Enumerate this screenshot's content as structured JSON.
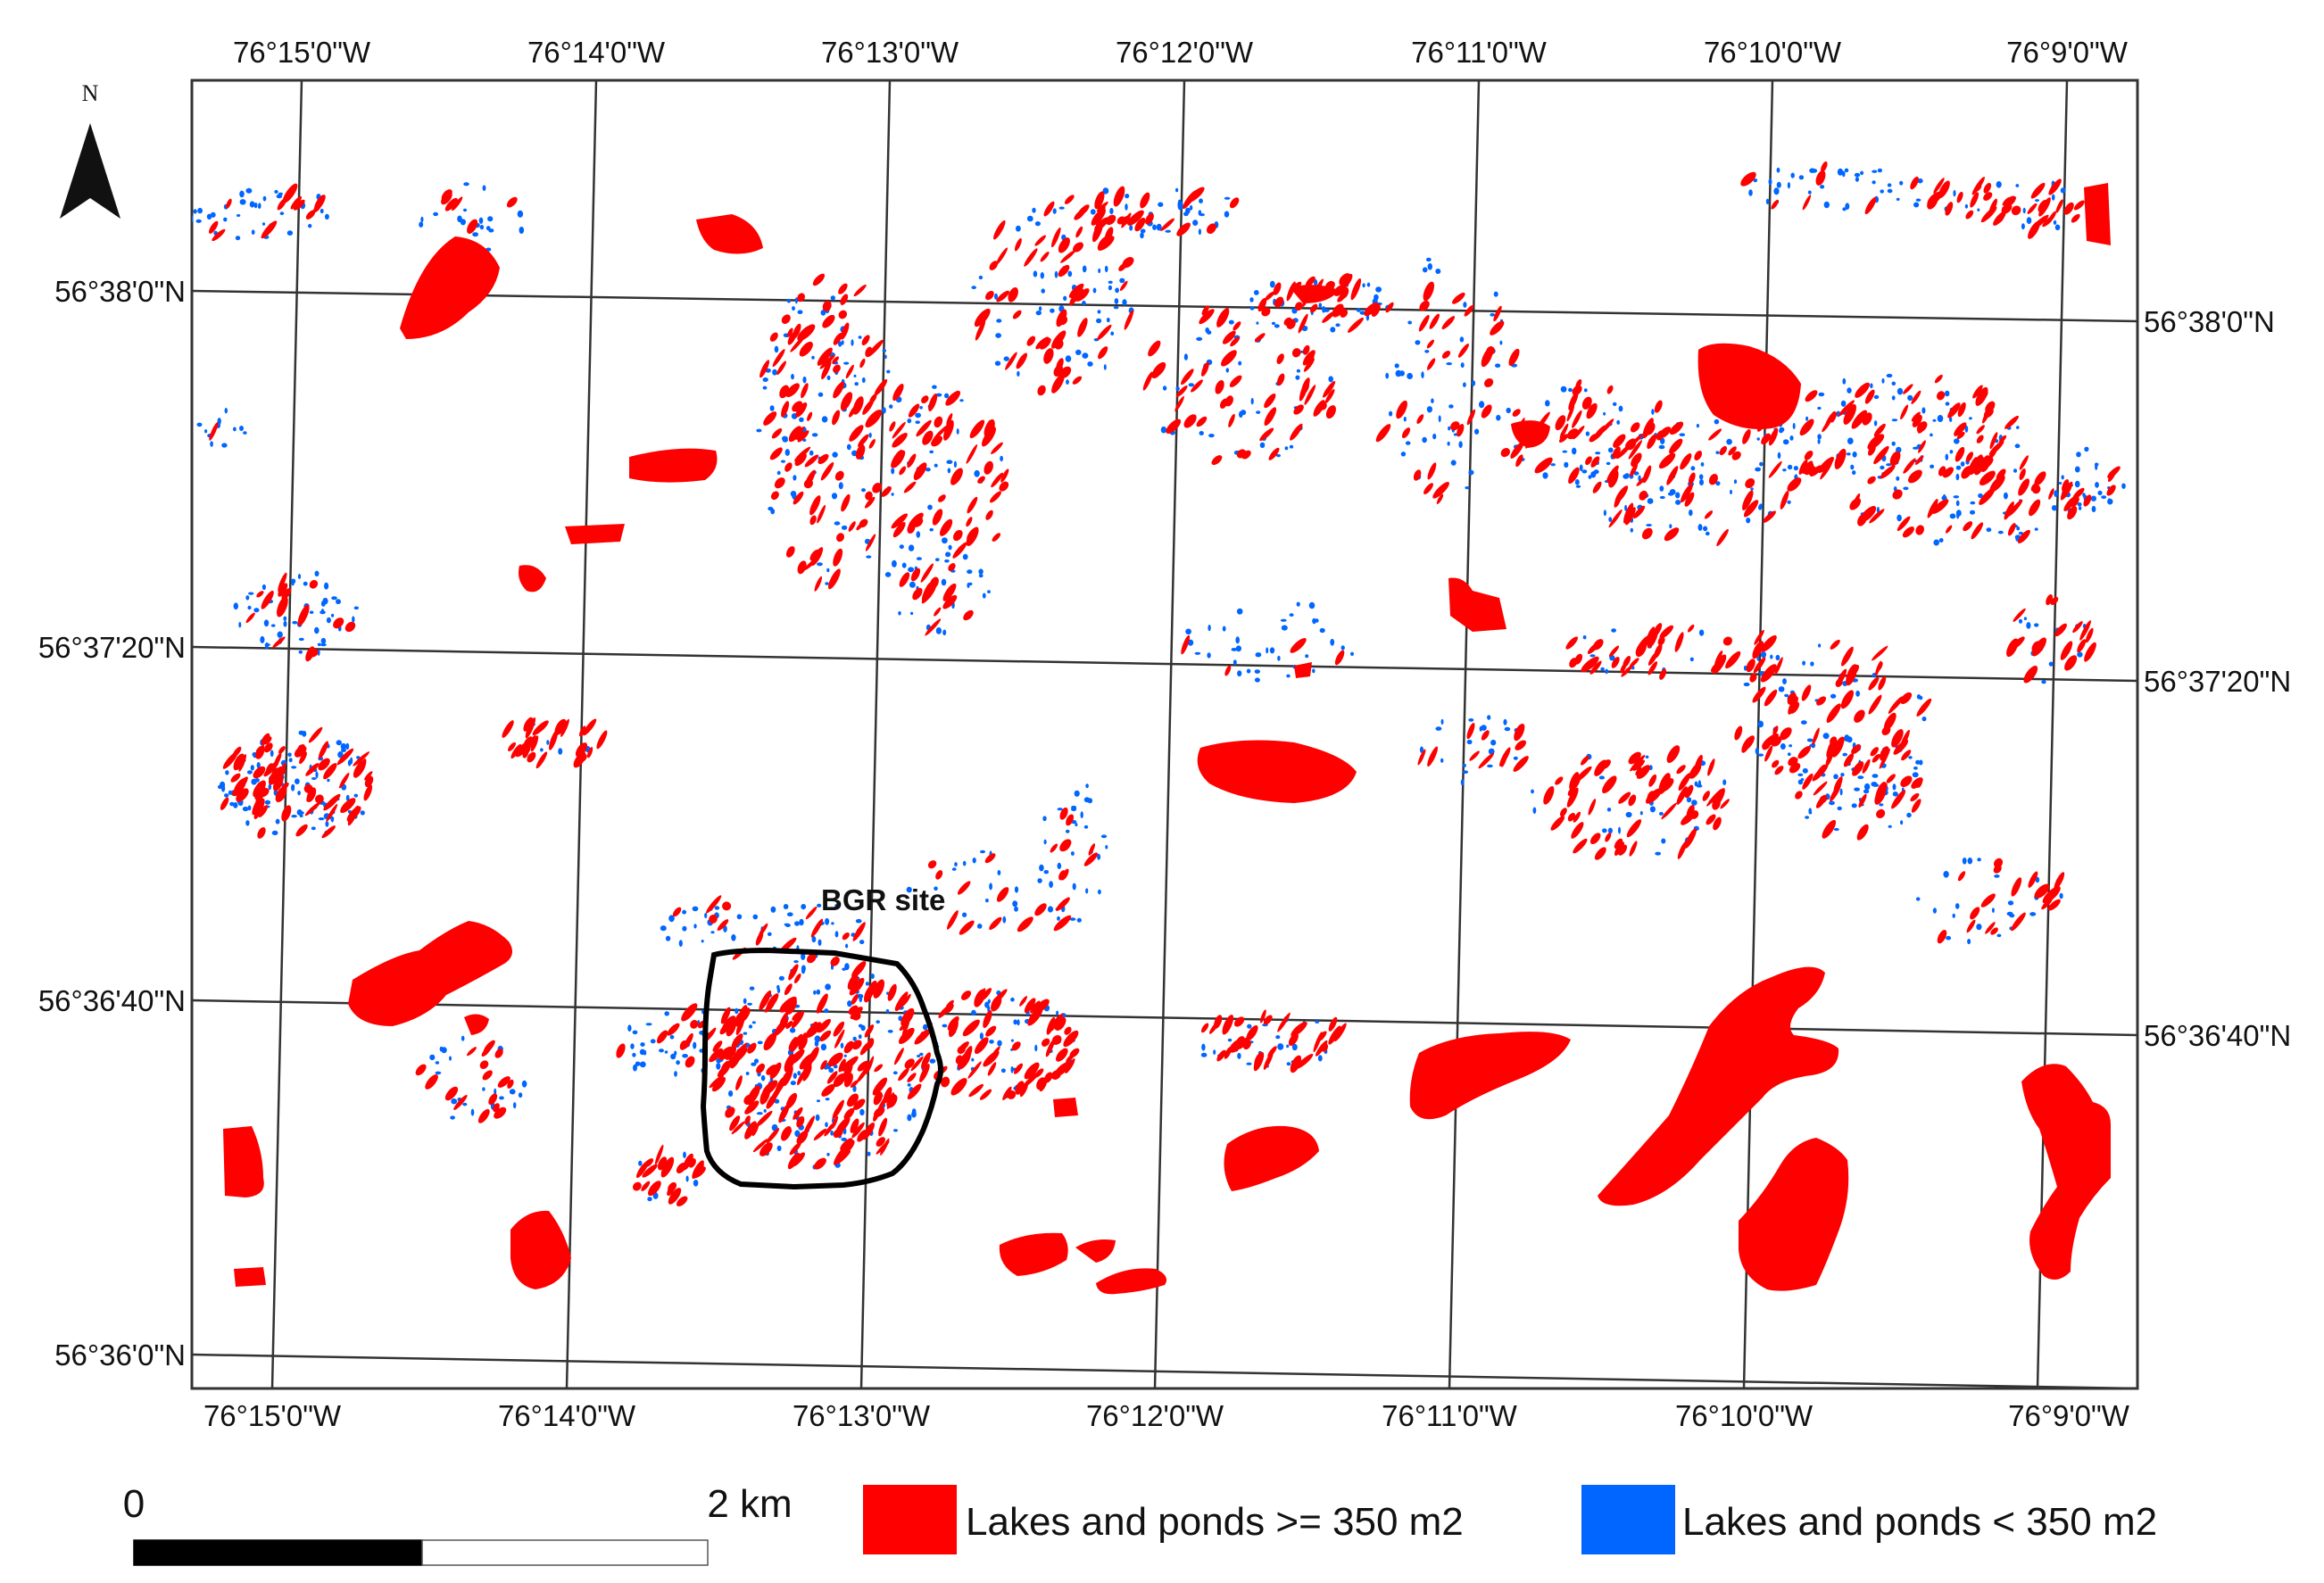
{
  "map": {
    "north_label": "N",
    "site_label": "BGR site",
    "colors": {
      "large": "#ff0000",
      "small": "#0066ff",
      "graticule": "#333333",
      "site_outline": "#000000"
    },
    "longitude_labels": [
      "76°15'0\"W",
      "76°14'0\"W",
      "76°13'0\"W",
      "76°12'0\"W",
      "76°11'0\"W",
      "76°10'0\"W",
      "76°9'0\"W"
    ],
    "latitude_labels_left": [
      "56°38'0\"N",
      "56°37'20\"N",
      "56°36'40\"N",
      "56°36'0\"N"
    ],
    "latitude_labels_right": [
      "56°38'0\"N",
      "56°37'20\"N",
      "56°36'40\"N"
    ]
  },
  "scale_bar": {
    "start_label": "0",
    "end_label": "2 km"
  },
  "legend": {
    "items": [
      {
        "label": "Lakes and ponds >= 350 m2",
        "color": "#ff0000"
      },
      {
        "label": "Lakes and ponds < 350 m2",
        "color": "#0066ff"
      }
    ]
  }
}
